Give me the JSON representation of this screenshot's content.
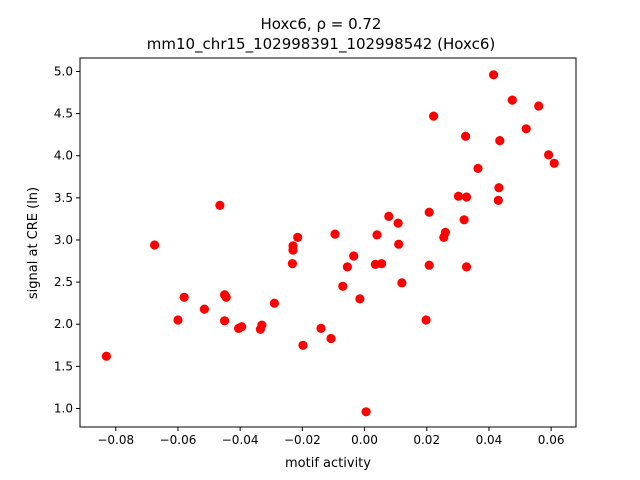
{
  "chart_data": {
    "type": "scatter",
    "title_line1": "Hoxc6, ρ = 0.72",
    "title_line2": "mm10_chr15_102998391_102998542 (Hoxc6)",
    "xlabel": "motif activity",
    "ylabel": "signal at CRE (ln)",
    "xlim": [
      -0.0915,
      0.068
    ],
    "ylim": [
      0.78,
      5.16
    ],
    "xticks": [
      -0.08,
      -0.06,
      -0.04,
      -0.02,
      0.0,
      0.02,
      0.04,
      0.06
    ],
    "xtick_labels": [
      "−0.08",
      "−0.06",
      "−0.04",
      "−0.02",
      "0.00",
      "0.02",
      "0.04",
      "0.06"
    ],
    "yticks": [
      1.0,
      1.5,
      2.0,
      2.5,
      3.0,
      3.5,
      4.0,
      4.5,
      5.0
    ],
    "ytick_labels": [
      "1.0",
      "1.5",
      "2.0",
      "2.5",
      "3.0",
      "3.5",
      "4.0",
      "4.5",
      "5.0"
    ],
    "grid": false,
    "marker_color": "#ff0000",
    "points": [
      [
        -0.083,
        1.62
      ],
      [
        -0.0675,
        2.94
      ],
      [
        -0.06,
        2.05
      ],
      [
        -0.058,
        2.32
      ],
      [
        -0.0515,
        2.18
      ],
      [
        -0.0465,
        3.41
      ],
      [
        -0.045,
        2.35
      ],
      [
        -0.0445,
        2.32
      ],
      [
        -0.045,
        2.04
      ],
      [
        -0.0405,
        1.95
      ],
      [
        -0.0395,
        1.97
      ],
      [
        -0.0335,
        1.94
      ],
      [
        -0.033,
        1.99
      ],
      [
        -0.029,
        2.25
      ],
      [
        -0.023,
        2.93
      ],
      [
        -0.023,
        2.88
      ],
      [
        -0.0232,
        2.72
      ],
      [
        -0.0215,
        3.03
      ],
      [
        -0.0198,
        1.75
      ],
      [
        -0.014,
        1.95
      ],
      [
        -0.0108,
        1.83
      ],
      [
        -0.0095,
        3.07
      ],
      [
        -0.007,
        2.45
      ],
      [
        -0.0055,
        2.68
      ],
      [
        -0.0035,
        2.81
      ],
      [
        -0.0015,
        2.3
      ],
      [
        0.0005,
        0.96
      ],
      [
        0.0035,
        2.71
      ],
      [
        0.004,
        3.06
      ],
      [
        0.0055,
        2.72
      ],
      [
        0.0078,
        3.28
      ],
      [
        0.0108,
        3.2
      ],
      [
        0.011,
        2.95
      ],
      [
        0.012,
        2.49
      ],
      [
        0.0198,
        2.05
      ],
      [
        0.0208,
        3.33
      ],
      [
        0.0208,
        2.7
      ],
      [
        0.0222,
        4.47
      ],
      [
        0.0255,
        3.03
      ],
      [
        0.026,
        3.09
      ],
      [
        0.0302,
        3.52
      ],
      [
        0.032,
        3.24
      ],
      [
        0.0325,
        4.23
      ],
      [
        0.0328,
        2.68
      ],
      [
        0.0328,
        3.51
      ],
      [
        0.0365,
        3.85
      ],
      [
        0.0415,
        4.96
      ],
      [
        0.043,
        3.47
      ],
      [
        0.0435,
        4.18
      ],
      [
        0.0432,
        3.62
      ],
      [
        0.0475,
        4.66
      ],
      [
        0.052,
        4.32
      ],
      [
        0.056,
        4.59
      ],
      [
        0.0592,
        4.01
      ],
      [
        0.061,
        3.91
      ]
    ]
  }
}
